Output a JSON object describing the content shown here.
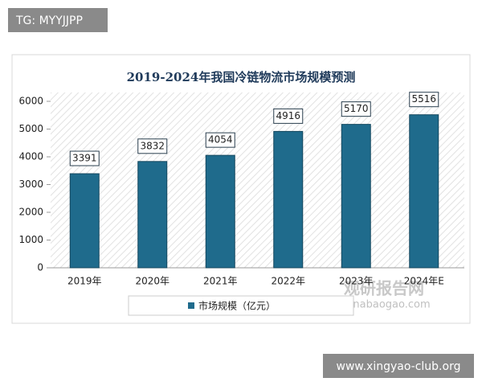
{
  "tag": "TG: MYYJJPP",
  "footer": "www.xingyao-club.org",
  "watermark": {
    "name": "观研报告网",
    "url": "chinabaogao.com"
  },
  "chart_data": {
    "type": "bar",
    "title": "2019-2024年我国冷链物流市场规模预测",
    "categories": [
      "2019年",
      "2020年",
      "2021年",
      "2022年",
      "2023年",
      "2024年E"
    ],
    "series": [
      {
        "name": "市场规模（亿元）",
        "color": "#1f6b8c",
        "values": [
          3391,
          3832,
          4054,
          4916,
          5170,
          5516
        ]
      }
    ],
    "ylim": [
      0,
      6000
    ],
    "yticks": [
      0,
      1000,
      2000,
      3000,
      4000,
      5000,
      6000
    ],
    "grid": false,
    "legend": "bottom"
  }
}
